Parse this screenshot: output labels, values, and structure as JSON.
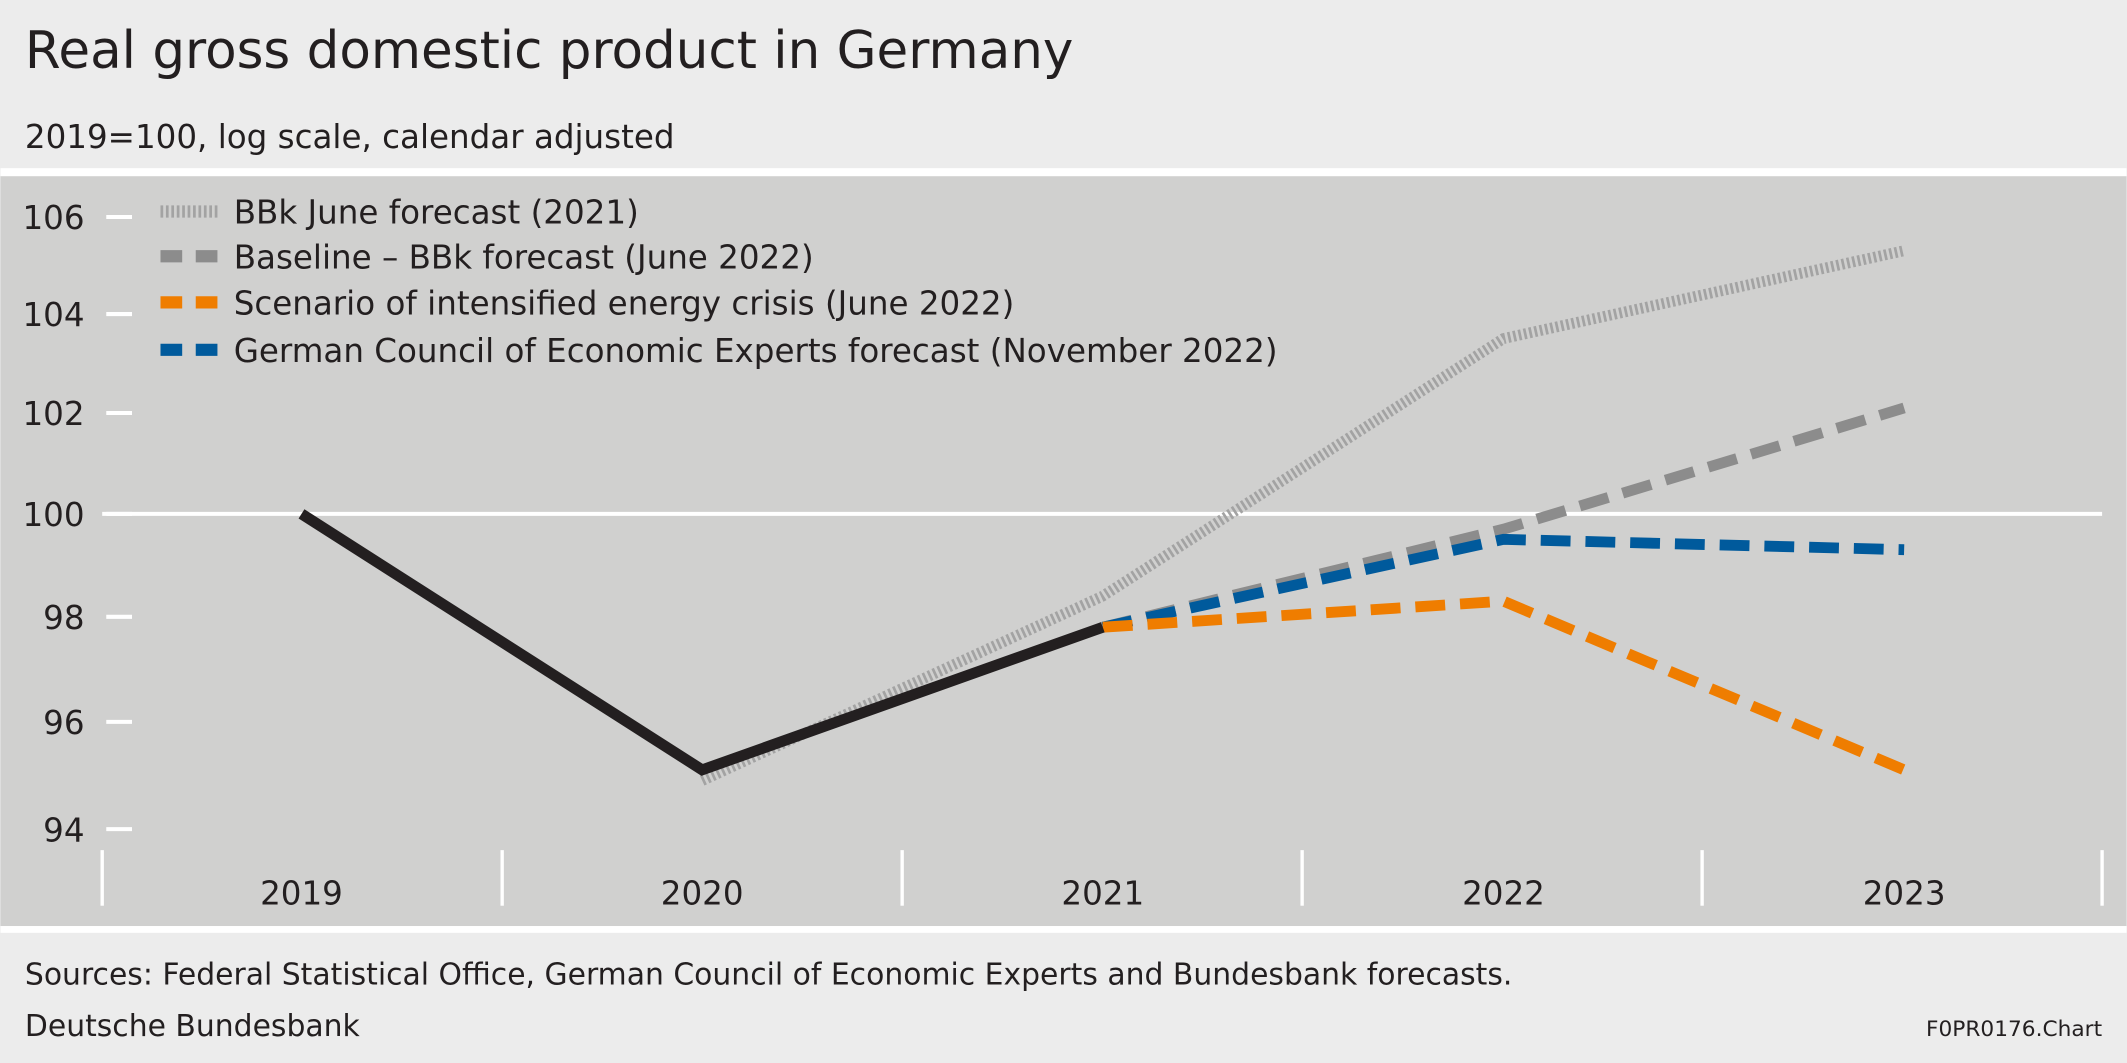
{
  "header": {
    "title": "Real gross domestic product in Germany",
    "subtitle": "2019=100, log scale, calendar adjusted"
  },
  "footer": {
    "sources": "Sources: Federal Statistical Office, German Council of Economic Experts and Bundesbank forecasts.",
    "publisher": "Deutsche Bundesbank",
    "chart_id": "F0PR0176.Chart"
  },
  "colors": {
    "background": "#ececec",
    "plot_background": "#d0d0cf",
    "actual": "#231f20",
    "bbk_2021": "#a3a3a3",
    "baseline": "#8c8c8c",
    "energy_crisis": "#ef7d00",
    "gcee": "#005a9c"
  },
  "chart_data": {
    "type": "line",
    "title": "Real gross domestic product in Germany",
    "subtitle": "2019=100, log scale, calendar adjusted",
    "y_scale": "log",
    "ylim": [
      94,
      106
    ],
    "yticks": [
      "94",
      "96",
      "98",
      "100",
      "102",
      "104",
      "106"
    ],
    "categories": [
      "2019",
      "2020",
      "2021",
      "2022",
      "2023"
    ],
    "grid": "reference line at 100 only",
    "legend_position": "top-left",
    "series": [
      {
        "key": "actual",
        "x": [
          "2019",
          "2020",
          "2021"
        ],
        "values": [
          100,
          95.1,
          97.8
        ],
        "style": "solid"
      },
      {
        "key": "bbk_2021",
        "name": "BBk June forecast (2021)",
        "x": [
          "2020",
          "2021",
          "2022",
          "2023"
        ],
        "values": [
          94.9,
          98.4,
          103.5,
          105.3
        ],
        "style": "dotted"
      },
      {
        "key": "baseline",
        "name": "Baseline – BBk forecast (June 2022)",
        "x": [
          "2021",
          "2022",
          "2023"
        ],
        "values": [
          97.8,
          99.7,
          102.1
        ],
        "style": "dashed"
      },
      {
        "key": "energy_crisis",
        "name": "Scenario of intensified energy crisis (June 2022)",
        "x": [
          "2021",
          "2022",
          "2023"
        ],
        "values": [
          97.8,
          98.3,
          95.1
        ],
        "style": "dashed"
      },
      {
        "key": "gcee",
        "name": "German Council of Economic Experts forecast (November 2022)",
        "x": [
          "2021",
          "2022",
          "2023"
        ],
        "values": [
          97.8,
          99.5,
          99.3
        ],
        "style": "dashed"
      }
    ]
  }
}
